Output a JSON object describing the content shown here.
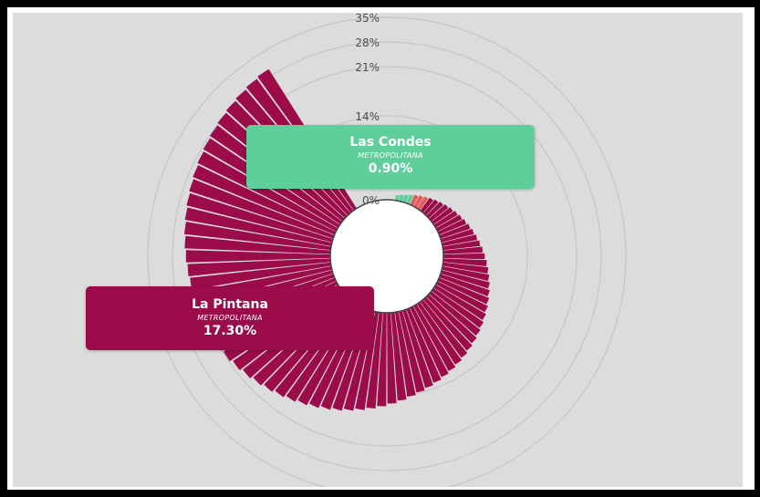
{
  "colors": {
    "background": "#dcdcdc",
    "high_bar": "#9c0b4a",
    "mid_bar": "#e8595a",
    "low_bar": "#5ecf9b",
    "tooltip_high": "#9c0b4a",
    "tooltip_low": "#5ecf9b",
    "grid": "#c6c6c6"
  },
  "tooltips": {
    "low": {
      "name": "Las Condes",
      "region": "METROPOLITANA",
      "value_label": "0.90%"
    },
    "high": {
      "name": "La Pintana",
      "region": "METROPOLITANA",
      "value_label": "17.30%"
    }
  },
  "chart_data": {
    "type": "bar",
    "coordinate_system": "radial",
    "title": "",
    "value_unit": "%",
    "radial_ticks": [
      "0%",
      "14%",
      "21%",
      "28%",
      "35%"
    ],
    "radial_tick_values": [
      0,
      14,
      21,
      28,
      35
    ],
    "range": [
      0,
      35
    ],
    "grid": true,
    "bar_count": 80,
    "min_value": 0.9,
    "max_value": 30.0,
    "highlighted": [
      {
        "name": "Las Condes",
        "region": "METROPOLITANA",
        "value": 0.9
      },
      {
        "name": "La Pintana",
        "region": "METROPOLITANA",
        "value": 17.3
      }
    ]
  }
}
